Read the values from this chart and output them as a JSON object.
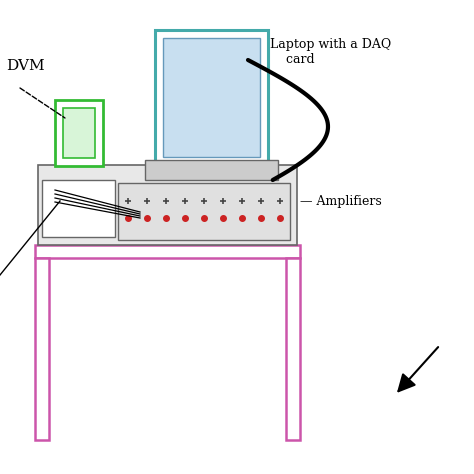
{
  "fig_w": 4.74,
  "fig_h": 4.74,
  "dpi": 100,
  "table_color": "#cc55aa",
  "box_edge_color": "#666666",
  "green_color": "#33bb33",
  "teal_color": "#44aaaa",
  "blue_screen_color": "#aaccee",
  "red_dot_color": "#cc2222",
  "dvm_label": "DVM",
  "laptop_label": "Laptop with a DAQ\n    card",
  "amp_label": "Amplifiers"
}
